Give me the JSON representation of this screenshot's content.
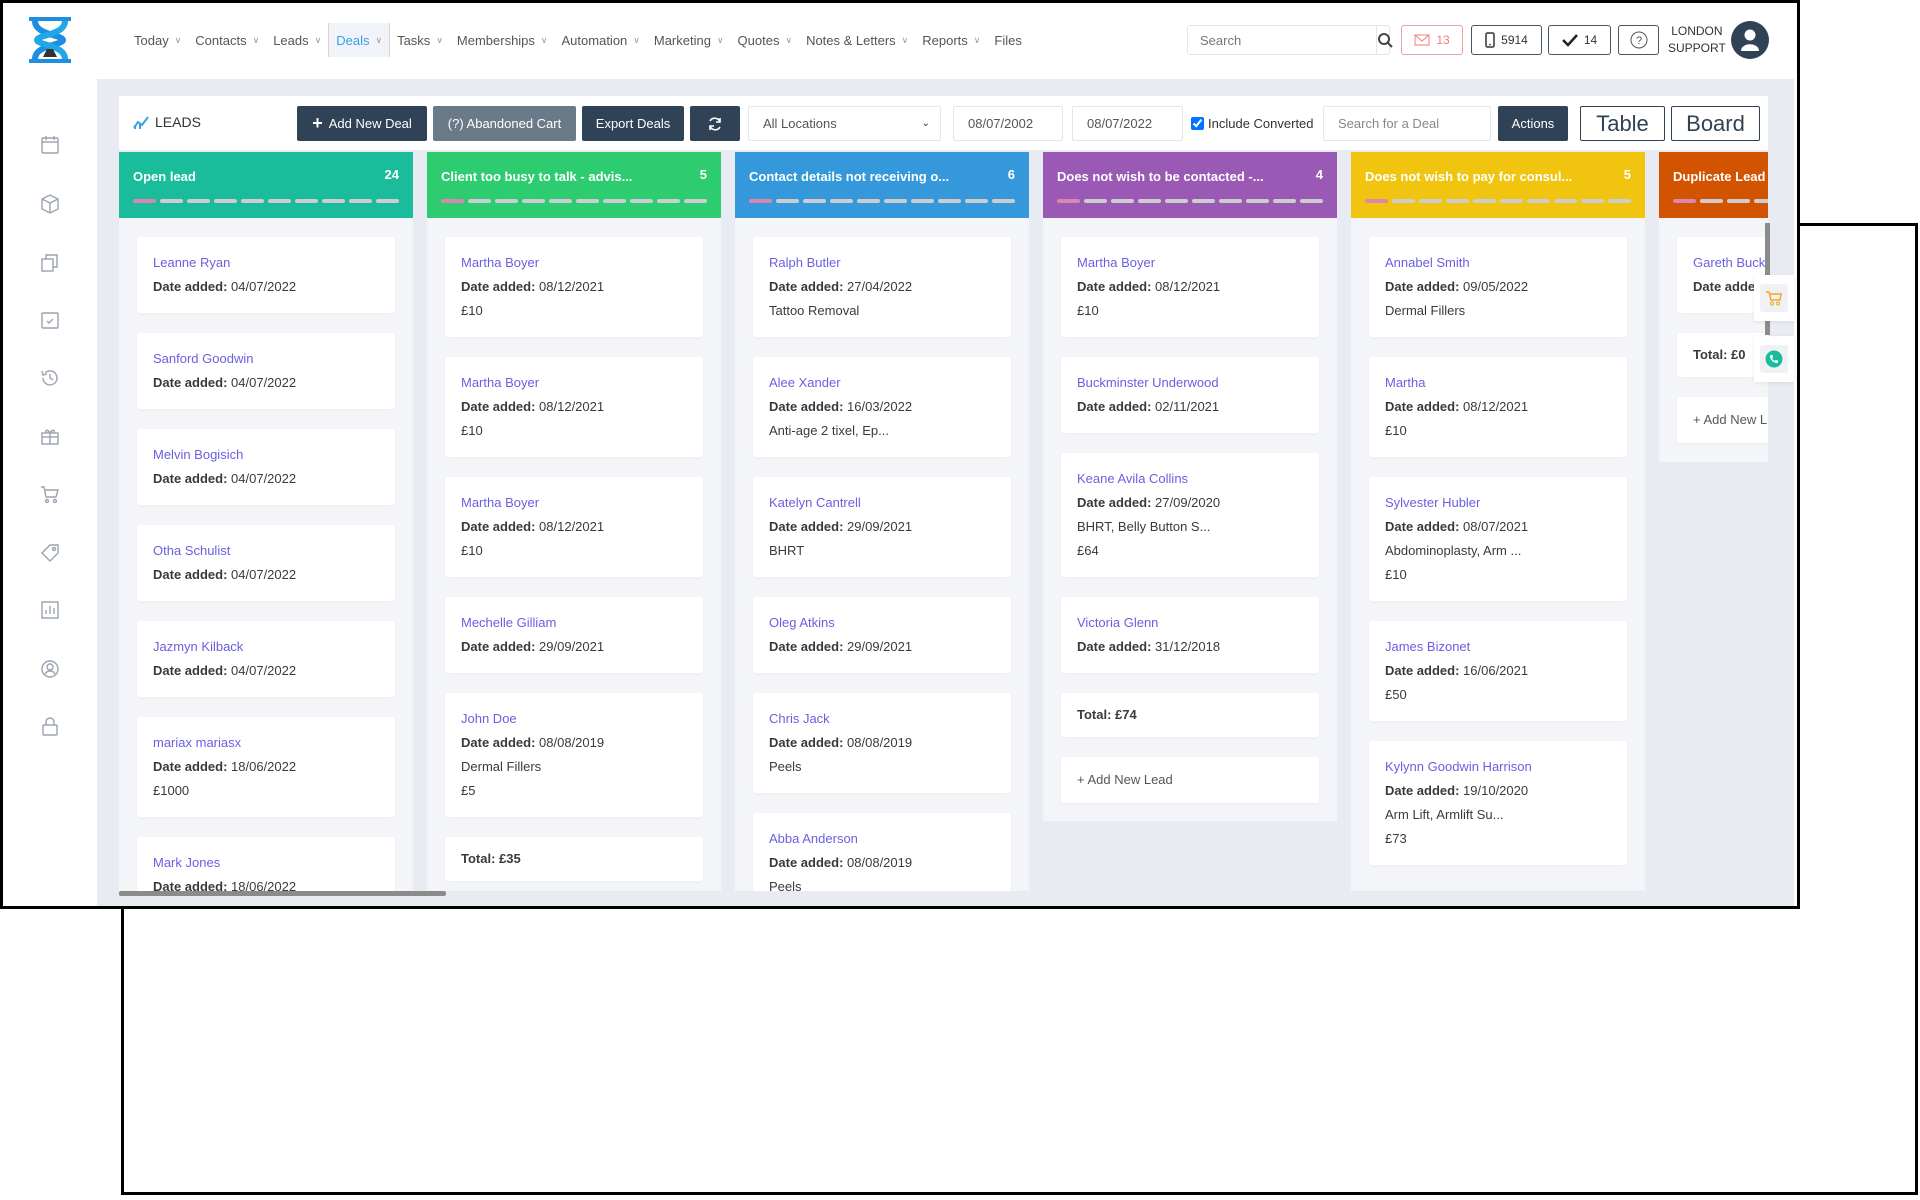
{
  "nav": {
    "items": [
      {
        "label": "Today",
        "chevron": true
      },
      {
        "label": "Contacts",
        "chevron": true
      },
      {
        "label": "Leads",
        "chevron": true
      },
      {
        "label": "Deals",
        "chevron": true,
        "active": true
      },
      {
        "label": "Tasks",
        "chevron": true
      },
      {
        "label": "Memberships",
        "chevron": true
      },
      {
        "label": "Automation",
        "chevron": true
      },
      {
        "label": "Marketing",
        "chevron": true
      },
      {
        "label": "Quotes",
        "chevron": true
      },
      {
        "label": "Notes & Letters",
        "chevron": true
      },
      {
        "label": "Reports",
        "chevron": true
      },
      {
        "label": "Files",
        "chevron": false
      }
    ]
  },
  "header": {
    "search_placeholder": "Search",
    "mail_count": "13",
    "phone_count": "5914",
    "tasks_count": "14",
    "user_line1": "LONDON",
    "user_line2": "SUPPORT"
  },
  "sidebar": {
    "icons": [
      "calendar-icon",
      "cube-icon",
      "copy-icon",
      "calendar-check-icon",
      "history-icon",
      "gift-icon",
      "cart-icon",
      "tags-icon",
      "chart-icon",
      "user-circle-icon",
      "lock-icon"
    ]
  },
  "toolbar": {
    "title": "LEADS",
    "add_new_deal": "Add New Deal",
    "abandoned_cart": "(?) Abandoned Cart",
    "export_deals": "Export Deals",
    "location": "All Locations",
    "date_from": "08/07/2002",
    "date_to": "08/07/2022",
    "include_converted": "Include Converted",
    "include_converted_checked": true,
    "deal_search_placeholder": "Search for a Deal",
    "actions": "Actions",
    "table": "Table",
    "board": "Board"
  },
  "colors": {
    "accent": "#2f4256",
    "link": "#6a5fe0",
    "mail": "#f07c7c"
  },
  "board": {
    "date_label": "Date added:",
    "columns": [
      {
        "title": "Open lead",
        "count": "24",
        "color": "#1abc9c",
        "cards": [
          {
            "name": "Leanne Ryan",
            "date": "04/07/2022"
          },
          {
            "name": "Sanford Goodwin",
            "date": "04/07/2022"
          },
          {
            "name": "Melvin Bogisich",
            "date": "04/07/2022"
          },
          {
            "name": "Otha Schulist",
            "date": "04/07/2022"
          },
          {
            "name": "Jazmyn Kilback",
            "date": "04/07/2022"
          },
          {
            "name": "mariax mariasx",
            "date": "18/06/2022",
            "amount": "£1000"
          },
          {
            "name": "Mark Jones",
            "date": "18/06/2022"
          }
        ]
      },
      {
        "title": "Client too busy to talk - advis...",
        "count": "5",
        "color": "#2ecc71",
        "cards": [
          {
            "name": "Martha Boyer",
            "date": "08/12/2021",
            "amount": "£10"
          },
          {
            "name": "Martha Boyer",
            "date": "08/12/2021",
            "amount": "£10"
          },
          {
            "name": "Martha Boyer",
            "date": "08/12/2021",
            "amount": "£10"
          },
          {
            "name": "Mechelle Gilliam",
            "date": "29/09/2021"
          },
          {
            "name": "John Doe",
            "date": "08/08/2019",
            "service": "Dermal Fillers",
            "amount": "£5"
          }
        ],
        "total": "Total: £35"
      },
      {
        "title": "Contact details not receiving o...",
        "count": "6",
        "color": "#3498db",
        "cards": [
          {
            "name": "Ralph Butler",
            "date": "27/04/2022",
            "service": "Tattoo Removal"
          },
          {
            "name": "Alee Xander",
            "date": "16/03/2022",
            "service": "Anti-age 2 tixel, Ep..."
          },
          {
            "name": "Katelyn Cantrell",
            "date": "29/09/2021",
            "service": "BHRT"
          },
          {
            "name": "Oleg Atkins",
            "date": "29/09/2021"
          },
          {
            "name": "Chris Jack",
            "date": "08/08/2019",
            "service": "Peels"
          },
          {
            "name": "Abba Anderson",
            "date": "08/08/2019",
            "service": "Peels"
          }
        ]
      },
      {
        "title": "Does not wish to be contacted -...",
        "count": "4",
        "color": "#9b59b6",
        "cards": [
          {
            "name": "Martha Boyer",
            "date": "08/12/2021",
            "amount": "£10"
          },
          {
            "name": "Buckminster Underwood",
            "date": "02/11/2021"
          },
          {
            "name": "Keane Avila Collins",
            "date": "27/09/2020",
            "service": "BHRT, Belly Button S...",
            "amount": "£64"
          },
          {
            "name": "Victoria Glenn",
            "date": "31/12/2018"
          }
        ],
        "total": "Total: £74",
        "add_label": "+ Add New Lead"
      },
      {
        "title": "Does not wish to pay for consul...",
        "count": "5",
        "color": "#f1c40f",
        "cards": [
          {
            "name": "Annabel Smith",
            "date": "09/05/2022",
            "service": "Dermal Fillers"
          },
          {
            "name": "Martha",
            "date": "08/12/2021",
            "amount": "£10"
          },
          {
            "name": "Sylvester Hubler",
            "date": "08/07/2021",
            "service": "Abdominoplasty, Arm ...",
            "amount": "£10"
          },
          {
            "name": "James Bizonet",
            "date": "16/06/2021",
            "amount": "£50"
          },
          {
            "name": "Kylynn Goodwin Harrison",
            "date": "19/10/2020",
            "service": "Arm Lift, Armlift Su...",
            "amount": "£73"
          }
        ]
      },
      {
        "title": "Duplicate Lead",
        "count": "",
        "color": "#d35400",
        "cards": [
          {
            "name": "Gareth Buck",
            "date": ""
          }
        ],
        "total": "Total: £0",
        "add_label": "+ Add New L"
      }
    ]
  },
  "floating": [
    "cart-icon",
    "phone-icon"
  ]
}
